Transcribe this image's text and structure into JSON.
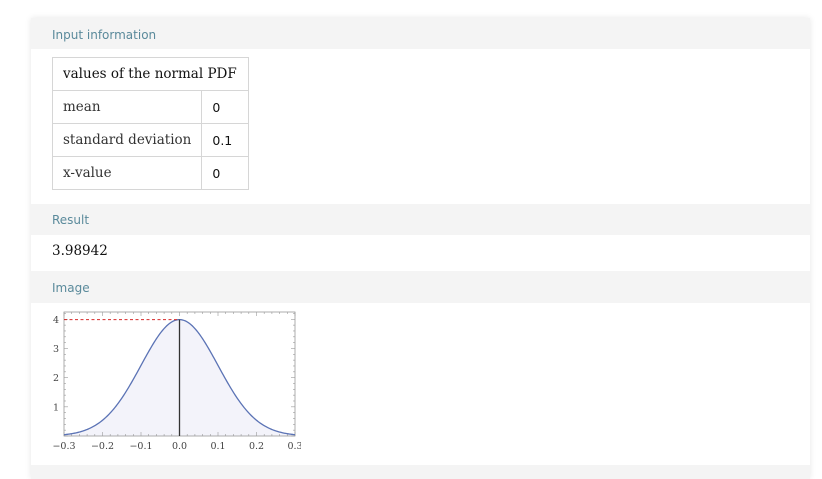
{
  "pods": {
    "input": {
      "title": "Input information",
      "table_header": "values of the normal PDF",
      "rows": [
        {
          "label": "mean",
          "value": "0"
        },
        {
          "label": "standard deviation",
          "value": "0.1"
        },
        {
          "label": "x-value",
          "value": "0"
        }
      ]
    },
    "result": {
      "title": "Result",
      "value": "3.98942"
    },
    "image": {
      "title": "Image"
    }
  },
  "chart_data": {
    "type": "line",
    "curve": "normal-pdf",
    "mean": 0,
    "sd": 0.1,
    "marker_x": 0,
    "marker_y": 3.98942,
    "xlim": [
      -0.3,
      0.3
    ],
    "ylim": [
      0,
      4.25
    ],
    "x_ticks": [
      "−0.3",
      "−0.2",
      "−0.1",
      "0.0",
      "0.1",
      "0.2",
      "0.3"
    ],
    "x_tick_values": [
      -0.3,
      -0.2,
      -0.1,
      0.0,
      0.1,
      0.2,
      0.3
    ],
    "y_ticks": [
      "1",
      "2",
      "3",
      "4"
    ],
    "y_tick_values": [
      1,
      2,
      3,
      4
    ],
    "colors": {
      "curve": "#5b73b5",
      "fill": "#f3f3fa",
      "marker_line": "#333333",
      "dashed": "#d62a2a",
      "frame": "#999999"
    }
  }
}
